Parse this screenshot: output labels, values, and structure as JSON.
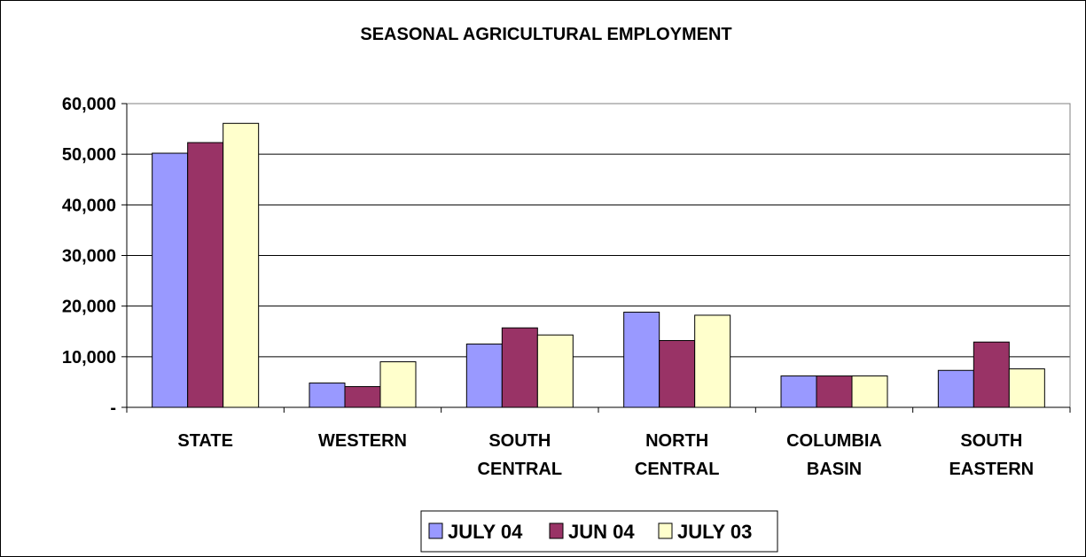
{
  "chart_data": {
    "type": "bar",
    "title": "SEASONAL AGRICULTURAL EMPLOYMENT",
    "xlabel": "",
    "ylabel": "",
    "ylim": [
      0,
      60000
    ],
    "yticks": [
      0,
      10000,
      20000,
      30000,
      40000,
      50000,
      60000
    ],
    "ytick_labels": [
      "-",
      "10,000",
      "20,000",
      "30,000",
      "40,000",
      "50,000",
      "60,000"
    ],
    "grid": true,
    "legend_position": "bottom",
    "categories": [
      [
        "STATE"
      ],
      [
        "WESTERN"
      ],
      [
        "SOUTH",
        "CENTRAL"
      ],
      [
        "NORTH",
        "CENTRAL"
      ],
      [
        "COLUMBIA",
        "BASIN"
      ],
      [
        "SOUTH",
        "EASTERN"
      ]
    ],
    "series": [
      {
        "name": "JULY 04",
        "color": "#9999FF",
        "values": [
          50200,
          4800,
          12500,
          18800,
          6200,
          7300
        ]
      },
      {
        "name": "JUN 04",
        "color": "#993366",
        "values": [
          52300,
          4100,
          15700,
          13200,
          6200,
          12900
        ]
      },
      {
        "name": "JULY 03",
        "color": "#FFFFCC",
        "values": [
          56100,
          9000,
          14300,
          18200,
          6200,
          7600
        ]
      }
    ]
  }
}
